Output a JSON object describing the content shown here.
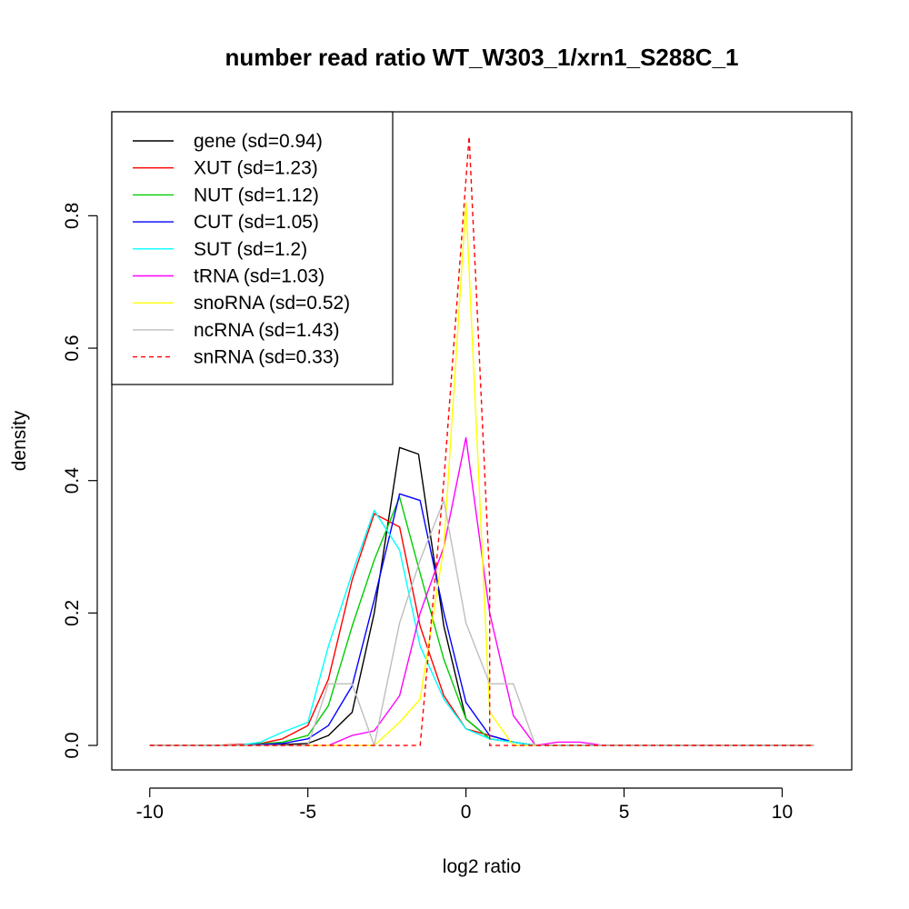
{
  "chart_data": {
    "type": "line",
    "title": "number read ratio WT_W303_1/xrn1_S288C_1",
    "xlabel": "log2 ratio",
    "ylabel": "density",
    "xlim": [
      -11.2,
      12.2
    ],
    "ylim": [
      -0.037,
      0.957
    ],
    "x_ticks": [
      -10,
      -5,
      0,
      5,
      10
    ],
    "x_tick_labels": [
      "-10",
      "-5",
      "0",
      "5",
      "10"
    ],
    "y_ticks": [
      0.0,
      0.2,
      0.4,
      0.6,
      0.8
    ],
    "y_tick_labels": [
      "0.0",
      "0.2",
      "0.4",
      "0.6",
      "0.8"
    ],
    "grid": false,
    "legend_position": "top-left",
    "series": [
      {
        "name": "gene (sd=0.94)",
        "color": "#000000",
        "dash": false,
        "x": [
          -10,
          -8,
          -6.5,
          -5,
          -4.35,
          -3.6,
          -2.9,
          -2.1,
          -1.5,
          -0.7,
          0,
          0.75,
          1.5,
          2.2,
          11
        ],
        "y": [
          0,
          0,
          0,
          0.003,
          0.015,
          0.05,
          0.2,
          0.45,
          0.44,
          0.18,
          0.04,
          0.01,
          0.005,
          0,
          0
        ]
      },
      {
        "name": "XUT (sd=1.23)",
        "color": "#ff0000",
        "dash": false,
        "x": [
          -10,
          -8,
          -6.5,
          -5.8,
          -5,
          -4.35,
          -3.6,
          -2.9,
          -2.1,
          -1.45,
          -0.7,
          0,
          0.75,
          1.5,
          2.2,
          11
        ],
        "y": [
          0,
          0,
          0.003,
          0.01,
          0.03,
          0.1,
          0.25,
          0.35,
          0.33,
          0.18,
          0.075,
          0.025,
          0.015,
          0.005,
          0,
          0
        ]
      },
      {
        "name": "NUT (sd=1.12)",
        "color": "#00cd00",
        "dash": false,
        "x": [
          -10,
          -7.2,
          -5.8,
          -5,
          -4.35,
          -3.6,
          -2.9,
          -2.1,
          -1.45,
          -0.7,
          0,
          0.75,
          1.5,
          2.2,
          11
        ],
        "y": [
          0,
          0,
          0.005,
          0.015,
          0.06,
          0.18,
          0.28,
          0.375,
          0.26,
          0.13,
          0.04,
          0.01,
          0.005,
          0,
          0
        ]
      },
      {
        "name": "CUT (sd=1.05)",
        "color": "#0000ff",
        "dash": false,
        "x": [
          -10,
          -7.2,
          -5.8,
          -5,
          -4.35,
          -3.6,
          -2.9,
          -2.1,
          -1.45,
          -0.7,
          0,
          0.75,
          1.5,
          2.2,
          11
        ],
        "y": [
          0,
          0,
          0.003,
          0.01,
          0.03,
          0.09,
          0.22,
          0.38,
          0.37,
          0.2,
          0.065,
          0.015,
          0.005,
          0,
          0
        ]
      },
      {
        "name": "SUT (sd=1.2)",
        "color": "#00ffff",
        "dash": false,
        "x": [
          -10,
          -7.2,
          -6.5,
          -5.8,
          -5,
          -4.35,
          -3.6,
          -2.9,
          -2.1,
          -1.45,
          -0.7,
          0,
          0.75,
          1.5,
          2.2,
          11
        ],
        "y": [
          0,
          0,
          0.005,
          0.02,
          0.035,
          0.15,
          0.26,
          0.355,
          0.295,
          0.15,
          0.07,
          0.025,
          0.01,
          0.005,
          0,
          0
        ]
      },
      {
        "name": "tRNA (sd=1.03)",
        "color": "#ff00ff",
        "dash": false,
        "x": [
          -10,
          -4.35,
          -3.6,
          -2.9,
          -2.1,
          -1.45,
          -0.7,
          0,
          0.75,
          1.5,
          2.2,
          2.9,
          3.6,
          4.35,
          11
        ],
        "y": [
          0,
          0,
          0.015,
          0.022,
          0.075,
          0.2,
          0.3,
          0.465,
          0.2,
          0.045,
          0,
          0.005,
          0.005,
          0,
          0
        ]
      },
      {
        "name": "snoRNA (sd=0.52)",
        "color": "#ffff00",
        "dash": false,
        "x": [
          -10,
          -2.9,
          -2.1,
          -1.45,
          -0.7,
          0,
          0.75,
          1.5,
          11
        ],
        "y": [
          0,
          0,
          0.035,
          0.07,
          0.3,
          0.82,
          0.05,
          0,
          0
        ]
      },
      {
        "name": "ncRNA (sd=1.43)",
        "color": "#bebebe",
        "dash": false,
        "x": [
          -10,
          -5,
          -4.35,
          -3.6,
          -2.9,
          -2.1,
          -1.45,
          -0.7,
          0,
          0.75,
          1.5,
          2.2,
          11
        ],
        "y": [
          0,
          0,
          0.093,
          0.093,
          0,
          0.185,
          0.28,
          0.37,
          0.185,
          0.093,
          0.093,
          0,
          0
        ]
      },
      {
        "name": "snRNA (sd=0.33)",
        "color": "#ff0000",
        "dash": true,
        "x": [
          -10,
          -1.45,
          -0.7,
          0.1,
          0.75,
          0.75,
          11
        ],
        "y": [
          0,
          0,
          0.4,
          0.92,
          0.25,
          0,
          0
        ]
      }
    ]
  }
}
